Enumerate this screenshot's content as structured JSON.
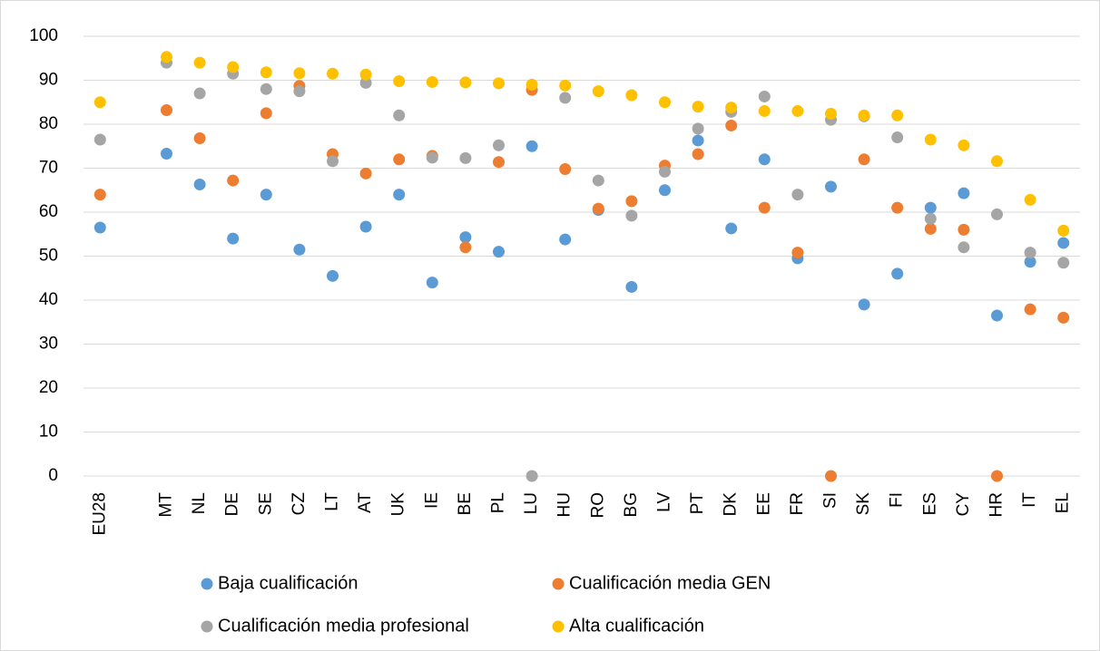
{
  "chart_data": {
    "type": "scatter",
    "categories": [
      "EU28",
      null,
      "MT",
      "NL",
      "DE",
      "SE",
      "CZ",
      "LT",
      "AT",
      "UK",
      "IE",
      "BE",
      "PL",
      "LU",
      "HU",
      "RO",
      "BG",
      "LV",
      "PT",
      "DK",
      "EE",
      "FR",
      "SI",
      "SK",
      "FI",
      "ES",
      "CY",
      "HR",
      "IT",
      "EL"
    ],
    "series": [
      {
        "name": "Baja cualificación",
        "color": "#5b9bd5",
        "values": [
          56.5,
          null,
          73.3,
          66.3,
          54,
          64,
          51.5,
          45.5,
          56.7,
          64,
          44,
          54.3,
          51,
          75,
          53.8,
          60.5,
          43,
          65,
          76.3,
          56.3,
          72,
          49.5,
          65.8,
          39,
          46,
          61,
          64.3,
          36.5,
          48.7,
          53
        ]
      },
      {
        "name": "Cualificación media GEN",
        "color": "#ed7d31",
        "values": [
          64,
          null,
          83.2,
          76.8,
          67.2,
          82.5,
          88.7,
          73.2,
          68.8,
          72,
          72.8,
          52,
          71.4,
          87.8,
          69.8,
          60.8,
          62.5,
          70.6,
          73.2,
          79.7,
          61,
          50.8,
          0,
          72,
          61,
          56.2,
          56,
          0,
          37.9,
          36
        ]
      },
      {
        "name": "Cualificación media profesional",
        "color": "#a5a5a5",
        "values": [
          76.5,
          null,
          94,
          87,
          91.5,
          88,
          87.5,
          71.6,
          89.4,
          82,
          72.4,
          72.3,
          75.2,
          0,
          86,
          67.2,
          59.2,
          69.2,
          79,
          82.8,
          86.3,
          64,
          81,
          81.8,
          77,
          58.5,
          52,
          59.5,
          50.8,
          48.5
        ]
      },
      {
        "name": "Alta cualificación",
        "color": "#ffc000",
        "values": [
          85,
          null,
          95.3,
          94,
          93,
          91.8,
          91.6,
          91.5,
          91.3,
          89.8,
          89.6,
          89.5,
          89.3,
          89,
          88.8,
          87.5,
          86.6,
          85,
          84,
          83.8,
          83,
          83,
          82.4,
          82,
          82,
          76.5,
          75.2,
          71.6,
          62.8,
          55.8
        ]
      }
    ],
    "ylim": [
      0,
      100
    ],
    "yticks": [
      0,
      10,
      20,
      30,
      40,
      50,
      60,
      70,
      80,
      90,
      100
    ],
    "grid": true,
    "legend": "bottom"
  }
}
